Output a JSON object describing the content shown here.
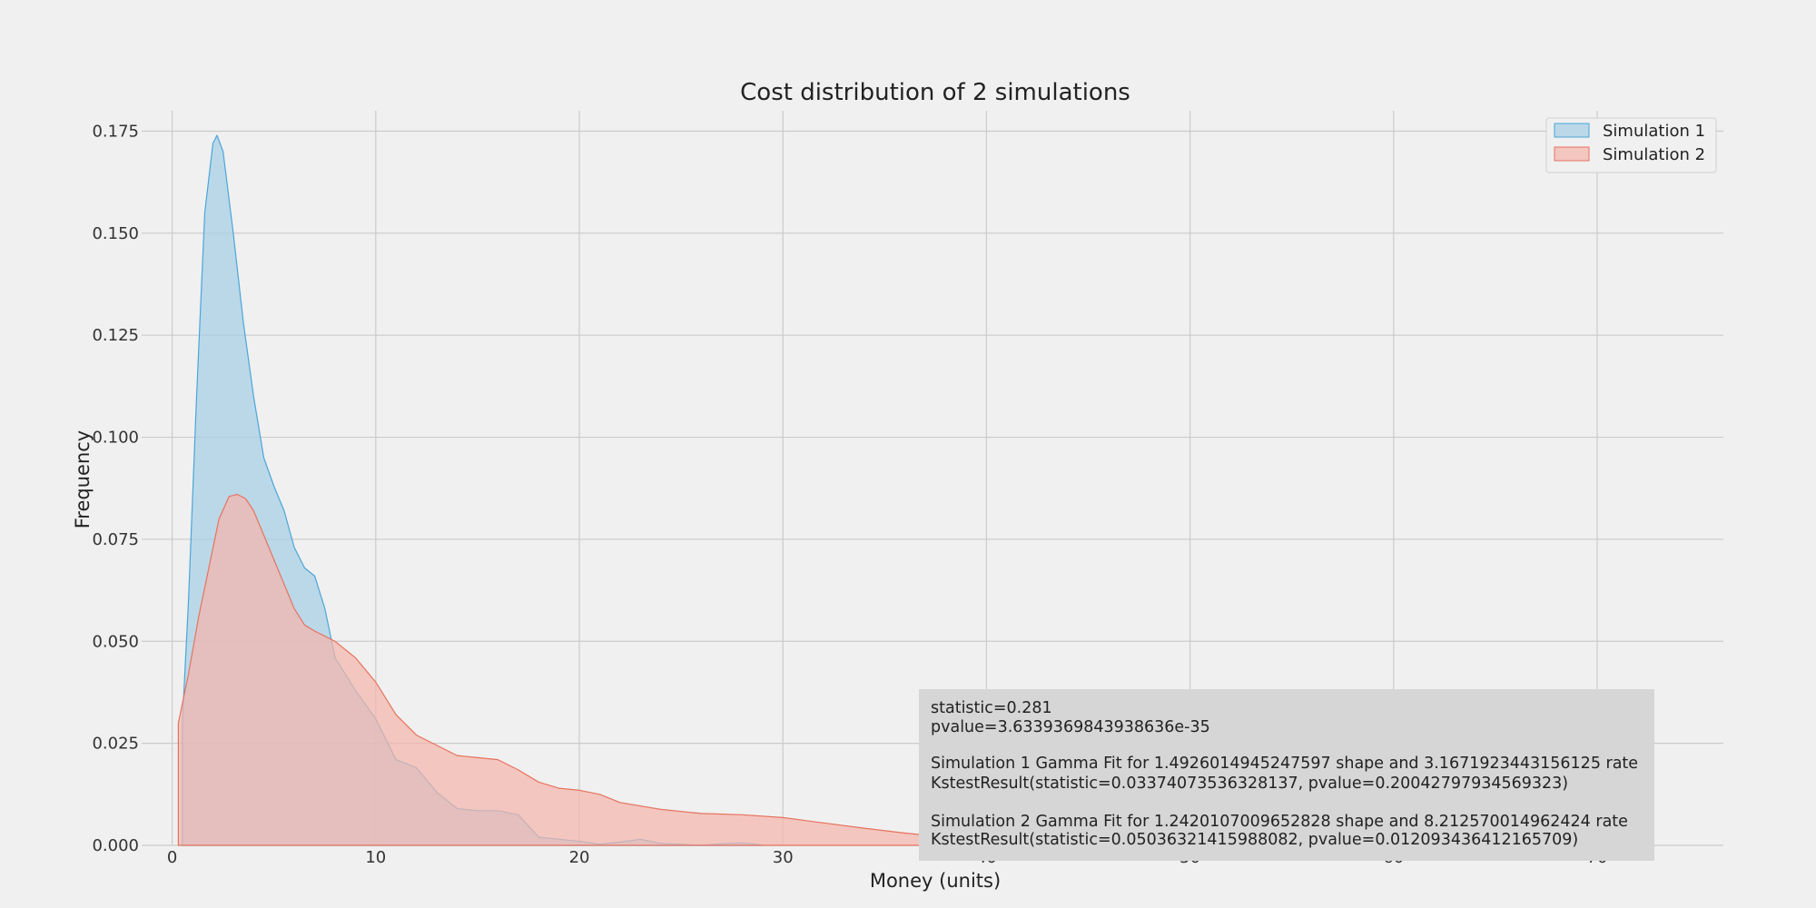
{
  "chart_data": {
    "type": "area",
    "title": "Cost distribution of 2 simulations",
    "xlabel": "Money (units)",
    "ylabel": "Frequency",
    "xlim": [
      -1.5,
      76.2
    ],
    "ylim": [
      0,
      0.18
    ],
    "xticks": [
      "0",
      "10",
      "20",
      "30",
      "40",
      "50",
      "60",
      "70"
    ],
    "yticks": [
      "0.000",
      "0.025",
      "0.050",
      "0.075",
      "0.100",
      "0.125",
      "0.150",
      "0.175"
    ],
    "grid": true,
    "legend_position": "top-right",
    "series": [
      {
        "name": "Simulation 1",
        "fill": "#a6cfe6",
        "stroke": "#4aa6d8",
        "points": [
          [
            0.5,
            0
          ],
          [
            0.5,
            0.03
          ],
          [
            0.8,
            0.06
          ],
          [
            1.2,
            0.11
          ],
          [
            1.6,
            0.155
          ],
          [
            2.0,
            0.172
          ],
          [
            2.2,
            0.174
          ],
          [
            2.5,
            0.17
          ],
          [
            3.0,
            0.15
          ],
          [
            3.5,
            0.128
          ],
          [
            4.0,
            0.11
          ],
          [
            4.5,
            0.095
          ],
          [
            5.0,
            0.088
          ],
          [
            5.5,
            0.082
          ],
          [
            6.0,
            0.073
          ],
          [
            6.5,
            0.068
          ],
          [
            7.0,
            0.066
          ],
          [
            7.5,
            0.058
          ],
          [
            8.0,
            0.046
          ],
          [
            9.0,
            0.038
          ],
          [
            10.0,
            0.031
          ],
          [
            10.5,
            0.026
          ],
          [
            11.0,
            0.021
          ],
          [
            12.0,
            0.019
          ],
          [
            13.0,
            0.013
          ],
          [
            14.0,
            0.009
          ],
          [
            15.0,
            0.0085
          ],
          [
            16.0,
            0.0085
          ],
          [
            17.0,
            0.0075
          ],
          [
            18.0,
            0.002
          ],
          [
            19.0,
            0.0015
          ],
          [
            20.0,
            0.001
          ],
          [
            21.0,
            0.0003
          ],
          [
            22.0,
            0.0008
          ],
          [
            23.0,
            0.0015
          ],
          [
            24.0,
            0.0005
          ],
          [
            26.0,
            0.0
          ],
          [
            27.0,
            0.0004
          ],
          [
            28.0,
            0.0006
          ],
          [
            28.5,
            0.0004
          ],
          [
            29.0,
            0.0
          ]
        ]
      },
      {
        "name": "Simulation 2",
        "fill": "#f4b6ac",
        "stroke": "#e6735f",
        "points": [
          [
            0.3,
            0
          ],
          [
            0.3,
            0.03
          ],
          [
            0.8,
            0.042
          ],
          [
            1.3,
            0.056
          ],
          [
            1.8,
            0.068
          ],
          [
            2.3,
            0.08
          ],
          [
            2.8,
            0.0855
          ],
          [
            3.2,
            0.086
          ],
          [
            3.6,
            0.085
          ],
          [
            4.0,
            0.082
          ],
          [
            4.5,
            0.076
          ],
          [
            5.0,
            0.07
          ],
          [
            5.5,
            0.064
          ],
          [
            6.0,
            0.058
          ],
          [
            6.5,
            0.054
          ],
          [
            7.0,
            0.0525
          ],
          [
            8.0,
            0.05
          ],
          [
            9.0,
            0.046
          ],
          [
            10.0,
            0.04
          ],
          [
            11.0,
            0.032
          ],
          [
            12.0,
            0.027
          ],
          [
            13.0,
            0.0245
          ],
          [
            14.0,
            0.022
          ],
          [
            15.0,
            0.0215
          ],
          [
            16.0,
            0.021
          ],
          [
            17.0,
            0.0185
          ],
          [
            18.0,
            0.0155
          ],
          [
            19.0,
            0.014
          ],
          [
            20.0,
            0.0135
          ],
          [
            21.0,
            0.0125
          ],
          [
            22.0,
            0.0105
          ],
          [
            24.0,
            0.0088
          ],
          [
            26.0,
            0.0078
          ],
          [
            28.0,
            0.0075
          ],
          [
            30.0,
            0.0068
          ],
          [
            32.0,
            0.0055
          ],
          [
            34.0,
            0.0042
          ],
          [
            36.0,
            0.003
          ],
          [
            38.0,
            0.002
          ],
          [
            40.0,
            0.0012
          ],
          [
            43.0,
            0.0006
          ],
          [
            46.0,
            0.0003
          ],
          [
            50.0,
            0.0001
          ],
          [
            55.0,
            0.0
          ]
        ]
      }
    ]
  },
  "stats_box": {
    "lines": [
      " statistic=0.281",
      " pvalue=3.6339369843938636e-35",
      "",
      "Simulation 1 Gamma Fit for 1.4926014945247597 shape and 3.1671923443156125 rate",
      " KstestResult(statistic=0.03374073536328137, pvalue=0.20042797934569323)",
      "",
      "Simulation 2 Gamma Fit for 1.2420107009652828 shape and 8.212570014962424 rate",
      " KstestResult(statistic=0.05036321415988082, pvalue=0.012093436412165709)"
    ]
  },
  "colors": {
    "background": "#f0f0f0",
    "grid": "#cbcbcb",
    "stats_box": "#d6d6d6"
  }
}
